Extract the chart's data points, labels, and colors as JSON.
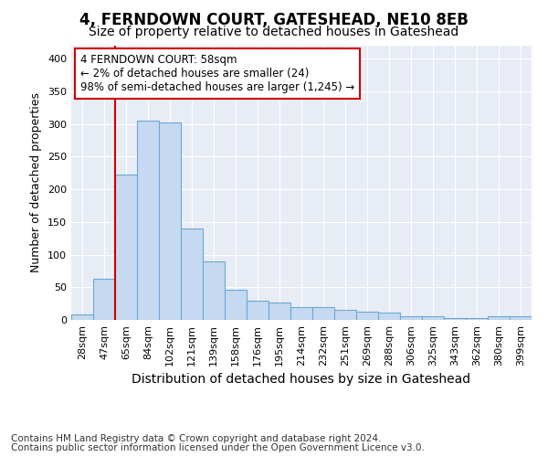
{
  "title": "4, FERNDOWN COURT, GATESHEAD, NE10 8EB",
  "subtitle": "Size of property relative to detached houses in Gateshead",
  "xlabel": "Distribution of detached houses by size in Gateshead",
  "ylabel": "Number of detached properties",
  "categories": [
    "28sqm",
    "47sqm",
    "65sqm",
    "84sqm",
    "102sqm",
    "121sqm",
    "139sqm",
    "158sqm",
    "176sqm",
    "195sqm",
    "214sqm",
    "232sqm",
    "251sqm",
    "269sqm",
    "288sqm",
    "306sqm",
    "325sqm",
    "343sqm",
    "362sqm",
    "380sqm",
    "399sqm"
  ],
  "values": [
    8,
    63,
    222,
    305,
    302,
    140,
    90,
    46,
    30,
    27,
    20,
    20,
    15,
    13,
    11,
    5,
    5,
    3,
    3,
    5,
    5
  ],
  "bar_color": "#c5d9f0",
  "bar_edge_color": "#6aaad4",
  "vline_color": "#cc0000",
  "annotation_text": "4 FERNDOWN COURT: 58sqm\n← 2% of detached houses are smaller (24)\n98% of semi-detached houses are larger (1,245) →",
  "annotation_box_color": "#ffffff",
  "annotation_box_edge": "#cc0000",
  "ylim": [
    0,
    420
  ],
  "bg_color": "#ffffff",
  "plot_bg_color": "#e8ecf5",
  "grid_color": "#ffffff",
  "footer1": "Contains HM Land Registry data © Crown copyright and database right 2024.",
  "footer2": "Contains public sector information licensed under the Open Government Licence v3.0.",
  "title_fontsize": 12,
  "subtitle_fontsize": 10,
  "xlabel_fontsize": 10,
  "ylabel_fontsize": 9,
  "tick_fontsize": 8,
  "annotation_fontsize": 8.5,
  "footer_fontsize": 7.5
}
